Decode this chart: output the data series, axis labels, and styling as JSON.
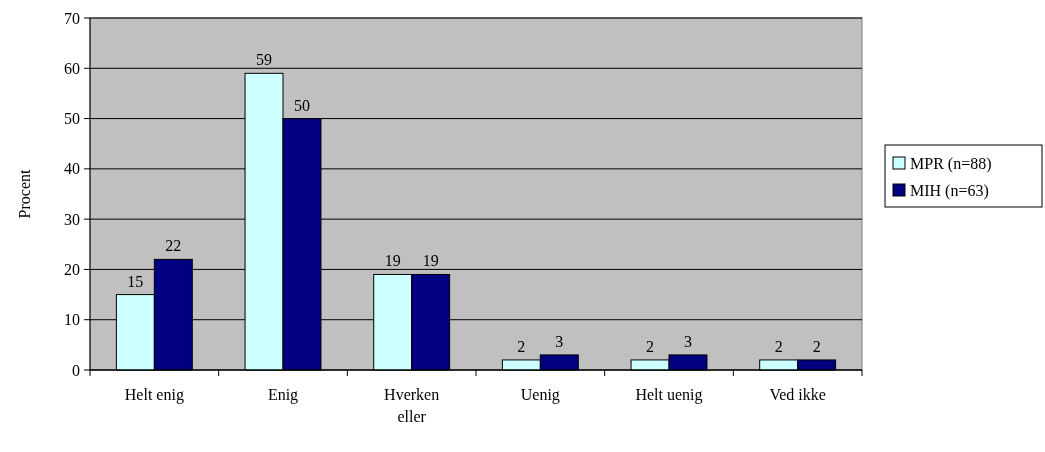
{
  "chart_data": {
    "type": "bar",
    "ylabel": "Procent",
    "categories": [
      "Helt enig",
      "Enig",
      "Hverken eller",
      "Uenig",
      "Helt uenig",
      "Ved ikke"
    ],
    "series": [
      {
        "name": "MPR (n=88)",
        "color": "#ccffff",
        "values": [
          15,
          59,
          19,
          2,
          2,
          2
        ]
      },
      {
        "name": "MIH (n=63)",
        "color": "#000080",
        "values": [
          22,
          50,
          19,
          3,
          3,
          2
        ]
      }
    ],
    "ylim": [
      0,
      70
    ],
    "yticks": [
      0,
      10,
      20,
      30,
      40,
      50,
      60,
      70
    ],
    "grid": "y",
    "legend": "right",
    "data_labels": true
  }
}
